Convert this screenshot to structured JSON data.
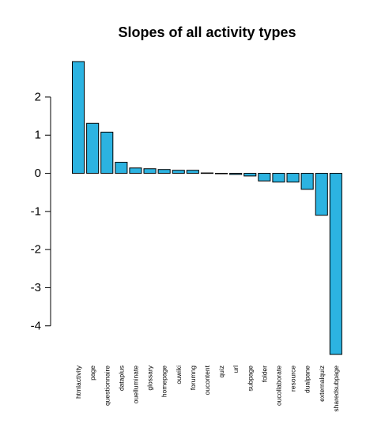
{
  "chart_data": {
    "type": "bar",
    "title": "Slopes of all activity types",
    "xlabel": "",
    "ylabel": "",
    "categories": [
      "htmlactivity",
      "page",
      "questionnaire",
      "dataplus",
      "ouelluminate",
      "glossary",
      "homepage",
      "ouwiki",
      "forumng",
      "oucontent",
      "quiz",
      "url",
      "subpage",
      "folder",
      "oucollaborate",
      "resource",
      "dualpane",
      "externalquiz",
      "sharedsubpage"
    ],
    "values": [
      2.93,
      1.31,
      1.08,
      0.29,
      0.14,
      0.12,
      0.1,
      0.08,
      0.08,
      0.01,
      0.0,
      -0.03,
      -0.07,
      -0.2,
      -0.23,
      -0.23,
      -0.42,
      -1.1,
      -4.75
    ],
    "ylim": [
      -4.75,
      2.93
    ],
    "yticks": [
      -4,
      -3,
      -2,
      -1,
      0,
      1,
      2
    ],
    "grid": false,
    "bar_color": "#2cb3e1"
  }
}
